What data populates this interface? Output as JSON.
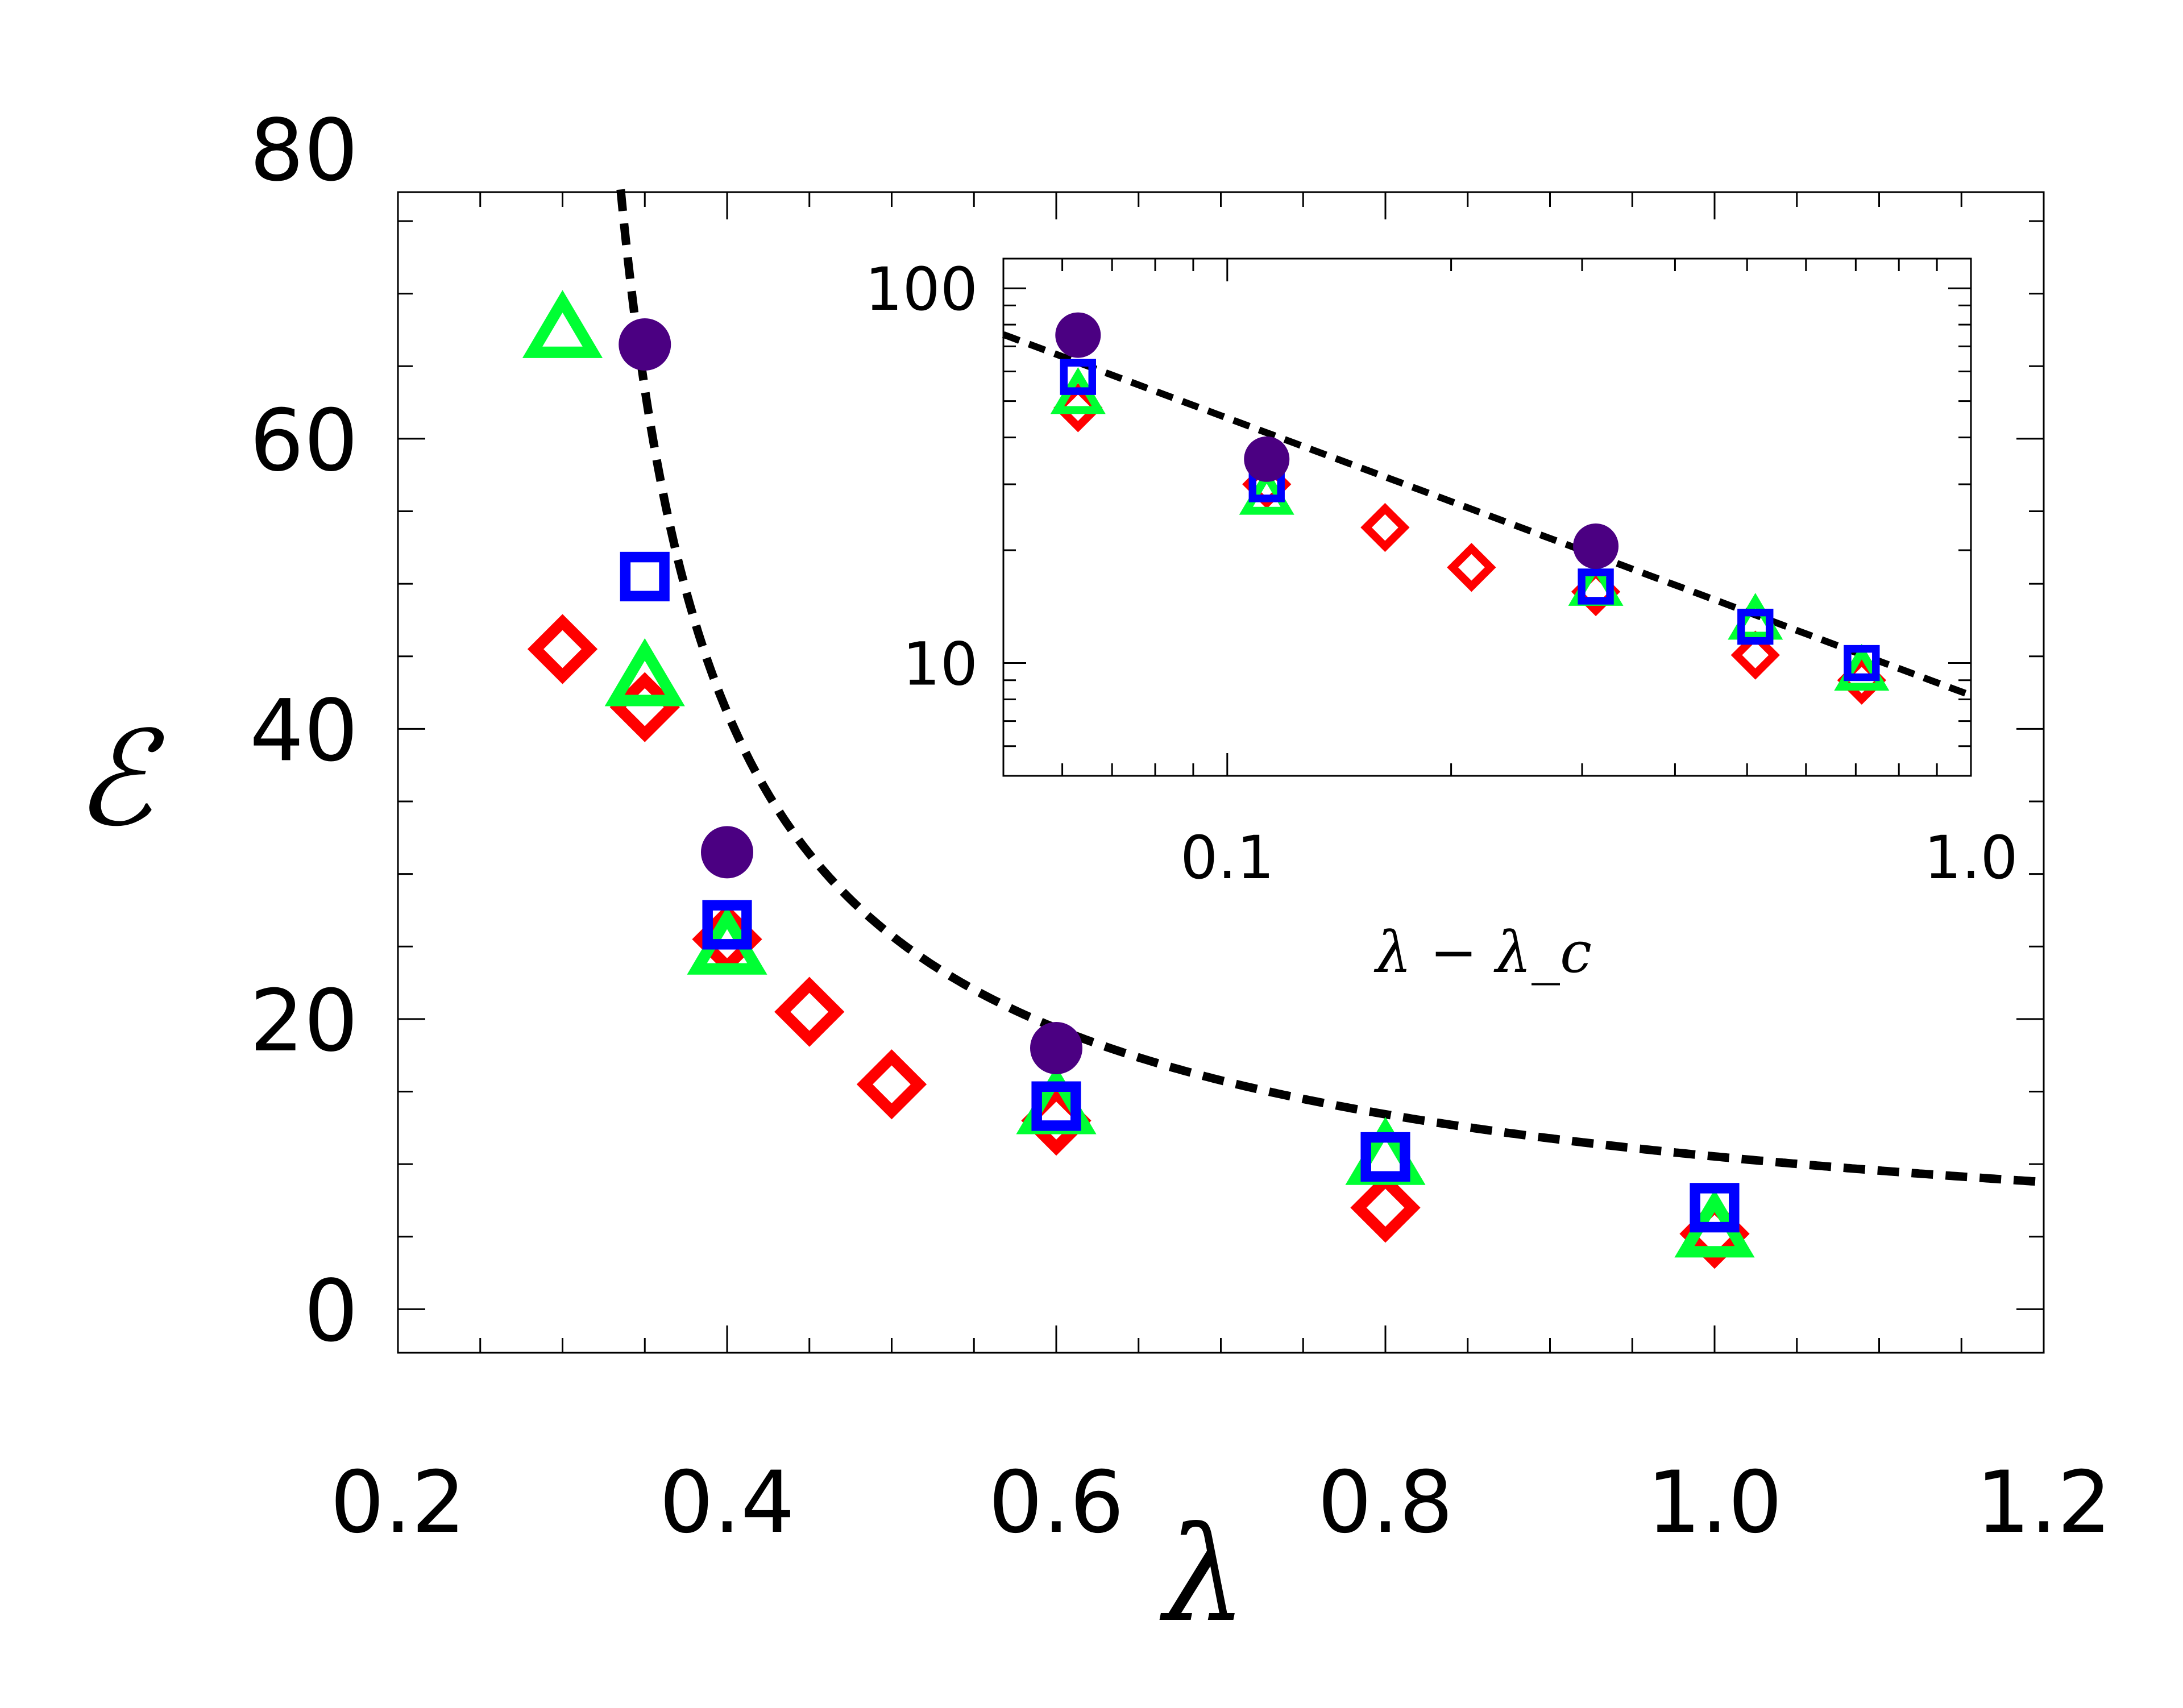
{
  "chart_data": [
    {
      "type": "scatter",
      "role": "main",
      "title": "",
      "xlabel": "λ",
      "ylabel": "ℰ",
      "xlim": [
        0.2,
        1.2
      ],
      "ylim": [
        -3,
        77
      ],
      "x_ticks": [
        "0.2",
        "0.4",
        "0.6",
        "0.8",
        "1.0",
        "1.2"
      ],
      "y_ticks": [
        "0",
        "20",
        "40",
        "60",
        "80"
      ],
      "series": [
        {
          "name": "red diamonds",
          "marker": "diamond",
          "color": "#ff0000",
          "x": [
            0.3,
            0.35,
            0.4,
            0.45,
            0.5,
            0.6,
            0.8,
            1.0
          ],
          "y": [
            45.5,
            41.5,
            25.5,
            20.5,
            15.5,
            13.0,
            7.0,
            5.2
          ]
        },
        {
          "name": "green triangles",
          "marker": "triangle",
          "color": "#00ff33",
          "x": [
            0.3,
            0.35,
            0.4,
            0.6,
            0.8,
            1.0
          ],
          "y": [
            67.5,
            43.5,
            25.0,
            14.0,
            10.5,
            5.5
          ]
        },
        {
          "name": "blue squares",
          "marker": "square",
          "color": "#0000ff",
          "x": [
            0.35,
            0.4,
            0.6,
            0.8,
            1.0
          ],
          "y": [
            50.5,
            26.5,
            14.0,
            10.5,
            7.0
          ]
        },
        {
          "name": "purple circles",
          "marker": "circle",
          "color": "#4b0082",
          "x": [
            0.35,
            0.4,
            0.6
          ],
          "y": [
            66.5,
            31.5,
            18.0
          ]
        }
      ],
      "fit_curve": {
        "style": "dashed",
        "color": "#000000",
        "lambda_c": 0.287,
        "A": 8.2,
        "exponent": -0.74
      }
    },
    {
      "type": "scatter",
      "role": "inset",
      "scale": "log-log",
      "title": "",
      "xlabel": "λ − λ_c",
      "ylabel": "",
      "xlim": [
        0.05,
        1.0
      ],
      "ylim": [
        5,
        120
      ],
      "x_ticks": [
        "0.1",
        "1.0"
      ],
      "y_ticks": [
        "10",
        "100"
      ],
      "series": [
        {
          "name": "red diamonds",
          "marker": "diamond",
          "color": "#ff0000",
          "x": [
            0.063,
            0.113,
            0.163,
            0.213,
            0.313,
            0.513,
            0.713
          ],
          "y": [
            48,
            30,
            23,
            18,
            15.5,
            10.5,
            9
          ]
        },
        {
          "name": "green triangles",
          "marker": "triangle",
          "color": "#00ff33",
          "x": [
            0.063,
            0.113,
            0.313,
            0.513,
            0.713
          ],
          "y": [
            52,
            28,
            16,
            13,
            9.5
          ]
        },
        {
          "name": "blue squares",
          "marker": "square",
          "color": "#0000ff",
          "x": [
            0.063,
            0.113,
            0.313,
            0.513,
            0.713
          ],
          "y": [
            58,
            30,
            16,
            12.5,
            10
          ]
        },
        {
          "name": "purple circles",
          "marker": "circle",
          "color": "#4b0082",
          "x": [
            0.063,
            0.113,
            0.313
          ],
          "y": [
            75,
            35,
            20.5
          ]
        }
      ],
      "fit_curve": {
        "style": "dashed",
        "color": "#000000",
        "A": 8.2,
        "exponent": -0.74
      }
    }
  ]
}
